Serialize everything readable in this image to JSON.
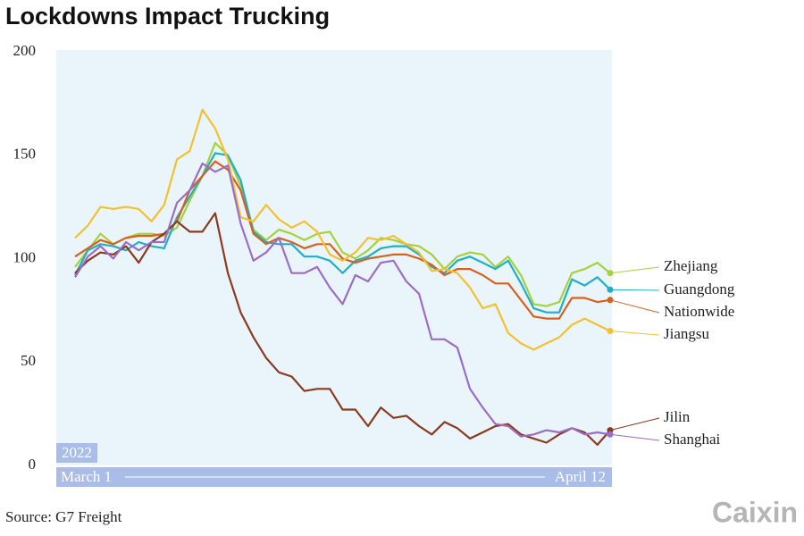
{
  "chart_data": {
    "type": "line",
    "title": "Lockdowns Impact Trucking",
    "source": "Source: G7 Freight",
    "brand": "Caixin",
    "year_label": "2022",
    "categories": [
      "March 1",
      null,
      null,
      null,
      null,
      null,
      null,
      null,
      null,
      null,
      null,
      null,
      null,
      null,
      null,
      null,
      null,
      null,
      null,
      null,
      null,
      null,
      null,
      null,
      null,
      null,
      null,
      null,
      null,
      null,
      null,
      null,
      null,
      null,
      null,
      null,
      null,
      null,
      null,
      null,
      null,
      null,
      "April 12"
    ],
    "ylim": [
      0,
      200
    ],
    "yticks": [
      0,
      50,
      100,
      150,
      200
    ],
    "grid": false,
    "legend": "right",
    "series": [
      {
        "name": "Zhejiang",
        "color": "#a6d13a",
        "values": [
          96,
          104,
          112,
          107,
          110,
          112,
          112,
          111,
          115,
          128,
          140,
          156,
          150,
          135,
          114,
          109,
          114,
          112,
          109,
          112,
          113,
          103,
          100,
          104,
          110,
          109,
          107,
          106,
          102,
          95,
          101,
          103,
          102,
          96,
          101,
          92,
          78,
          77,
          79,
          93,
          95,
          98,
          93
        ]
      },
      {
        "name": "Guangdong",
        "color": "#1fb0c9",
        "values": [
          92,
          104,
          107,
          106,
          104,
          108,
          106,
          105,
          120,
          130,
          140,
          151,
          150,
          138,
          113,
          108,
          107,
          107,
          101,
          101,
          99,
          93,
          99,
          101,
          105,
          106,
          106,
          102,
          96,
          93,
          99,
          101,
          98,
          95,
          99,
          88,
          76,
          74,
          74,
          90,
          87,
          91,
          85
        ]
      },
      {
        "name": "Nationwide",
        "color": "#d9601c",
        "values": [
          101,
          105,
          109,
          107,
          110,
          111,
          111,
          112,
          118,
          133,
          140,
          147,
          143,
          133,
          112,
          107,
          110,
          108,
          105,
          107,
          107,
          100,
          98,
          100,
          101,
          102,
          102,
          100,
          97,
          92,
          95,
          95,
          92,
          88,
          88,
          80,
          72,
          71,
          71,
          81,
          81,
          79,
          80
        ]
      },
      {
        "name": "Jiangsu",
        "color": "#f4c02f",
        "values": [
          110,
          116,
          125,
          124,
          125,
          124,
          118,
          126,
          148,
          152,
          172,
          163,
          148,
          120,
          118,
          126,
          119,
          115,
          118,
          113,
          102,
          99,
          103,
          110,
          109,
          111,
          107,
          103,
          94,
          95,
          93,
          86,
          76,
          78,
          64,
          59,
          56,
          59,
          62,
          68,
          71,
          68,
          65
        ]
      },
      {
        "name": "Jilin",
        "color": "#8a3a1e",
        "values": [
          93,
          99,
          103,
          102,
          106,
          98,
          108,
          112,
          118,
          113,
          113,
          122,
          93,
          74,
          62,
          52,
          45,
          43,
          36,
          37,
          37,
          27,
          27,
          19,
          28,
          23,
          24,
          19,
          15,
          21,
          18,
          13,
          16,
          19,
          20,
          15,
          13,
          11,
          15,
          18,
          16,
          10,
          17
        ]
      },
      {
        "name": "Shanghai",
        "color": "#9b6dc6",
        "values": [
          91,
          101,
          106,
          100,
          108,
          104,
          108,
          108,
          127,
          133,
          146,
          142,
          145,
          117,
          99,
          103,
          110,
          93,
          93,
          96,
          86,
          78,
          92,
          89,
          98,
          99,
          89,
          83,
          61,
          61,
          57,
          37,
          28,
          20,
          19,
          14,
          15,
          17,
          16,
          18,
          15,
          16,
          15
        ]
      }
    ]
  }
}
